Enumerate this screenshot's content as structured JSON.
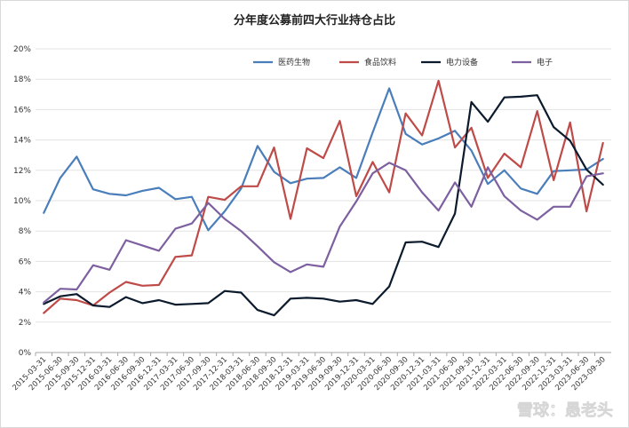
{
  "chart_data": {
    "type": "line",
    "title": "分年度公募前四大行业持仓占比",
    "xlabel": "",
    "ylabel": "",
    "ylim": [
      0,
      20
    ],
    "yticks": [
      "0%",
      "2%",
      "4%",
      "6%",
      "8%",
      "10%",
      "12%",
      "14%",
      "16%",
      "18%",
      "20%"
    ],
    "grid": "horizontal",
    "legend": "top-right",
    "x": [
      "2015-03-31",
      "2015-06-30",
      "2015-09-30",
      "2015-12-31",
      "2016-03-31",
      "2016-06-30",
      "2016-09-30",
      "2016-12-31",
      "2017-03-31",
      "2017-06-30",
      "2017-09-30",
      "2017-12-31",
      "2018-03-31",
      "2018-06-30",
      "2018-09-30",
      "2018-12-31",
      "2019-03-31",
      "2019-06-30",
      "2019-09-30",
      "2019-12-31",
      "2020-03-31",
      "2020-06-30",
      "2020-09-30",
      "2020-12-31",
      "2021-03-31",
      "2021-06-30",
      "2021-09-30",
      "2021-12-31",
      "2022-03-31",
      "2022-06-30",
      "2022-09-30",
      "2022-12-31",
      "2023-03-31",
      "2023-06-30",
      "2023-09-30"
    ],
    "series": [
      {
        "name": "医药生物",
        "color": "#4a7ebb",
        "values": [
          9.2,
          11.5,
          12.9,
          10.75,
          10.45,
          10.35,
          10.65,
          10.85,
          10.1,
          10.25,
          8.05,
          9.3,
          10.8,
          13.6,
          11.9,
          11.15,
          11.45,
          11.5,
          12.2,
          11.5,
          14.5,
          17.4,
          14.4,
          13.7,
          14.1,
          14.6,
          13.3,
          11.1,
          12.0,
          10.8,
          10.45,
          11.95,
          12.0,
          12.05,
          12.75
        ]
      },
      {
        "name": "食品饮料",
        "color": "#be4b48",
        "values": [
          2.6,
          3.55,
          3.45,
          3.1,
          3.95,
          4.65,
          4.4,
          4.45,
          6.3,
          6.4,
          10.25,
          10.05,
          10.95,
          10.95,
          13.5,
          8.8,
          13.45,
          12.8,
          15.25,
          10.3,
          12.55,
          10.55,
          15.75,
          14.3,
          17.9,
          13.5,
          14.8,
          11.5,
          13.1,
          12.2,
          15.9,
          11.35,
          15.15,
          9.3,
          13.8
        ]
      },
      {
        "name": "电力设备",
        "color": "#0b1a2c",
        "values": [
          3.2,
          3.7,
          3.85,
          3.1,
          3.0,
          3.65,
          3.25,
          3.45,
          3.15,
          3.2,
          3.25,
          4.05,
          3.95,
          2.8,
          2.45,
          3.55,
          3.6,
          3.55,
          3.35,
          3.45,
          3.2,
          4.35,
          7.25,
          7.3,
          6.95,
          9.15,
          16.5,
          15.2,
          16.8,
          16.85,
          16.95,
          14.85,
          13.95,
          12.05,
          11.05
        ]
      },
      {
        "name": "电子",
        "color": "#7d60a0",
        "values": [
          3.3,
          4.2,
          4.15,
          5.75,
          5.45,
          7.4,
          7.05,
          6.7,
          8.15,
          8.5,
          9.85,
          8.8,
          8.0,
          7.0,
          5.95,
          5.3,
          5.8,
          5.65,
          8.3,
          9.95,
          11.8,
          12.5,
          12.0,
          10.55,
          9.35,
          11.2,
          9.6,
          12.2,
          10.3,
          9.35,
          8.75,
          9.6,
          9.6,
          11.6,
          11.8
        ]
      }
    ]
  },
  "watermark": {
    "text": "雪球：愚老头"
  }
}
